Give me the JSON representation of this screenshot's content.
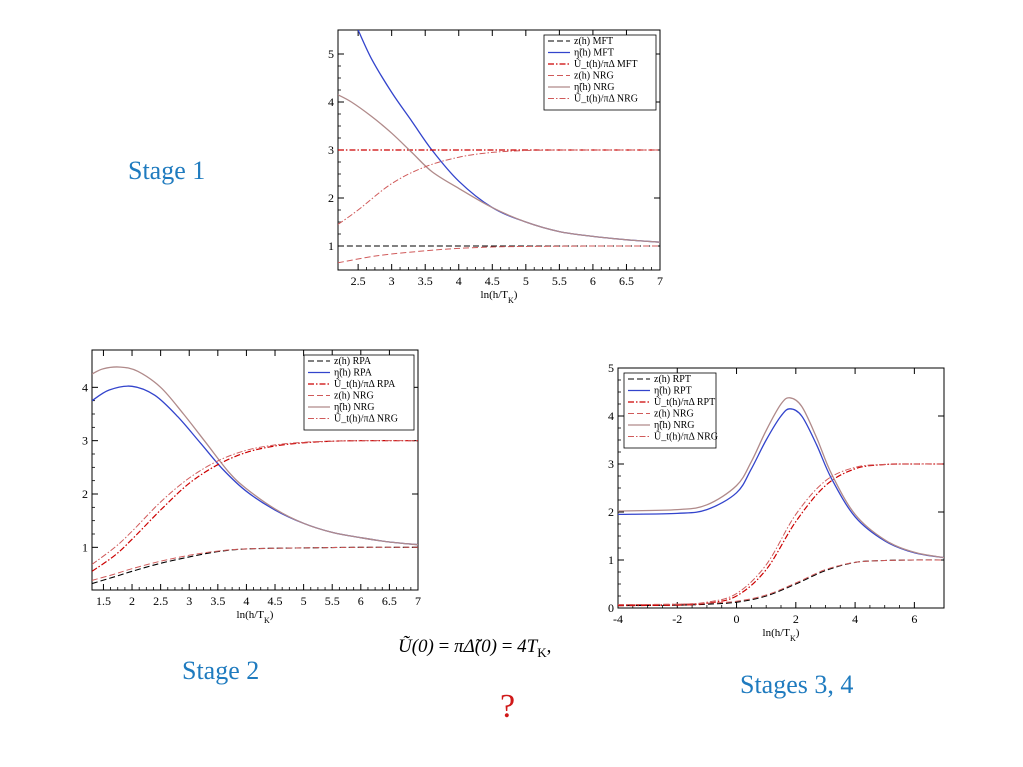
{
  "labels": {
    "stage1": "Stage 1",
    "stage2": "Stage 2",
    "stage34": "Stages 3, 4",
    "question": "?"
  },
  "formula": {
    "lhs": "Ũ(0)",
    "eq1": " = ",
    "mid": "πΔ̃(0)",
    "eq2": " = ",
    "rhs": "4T",
    "rhs_sub": "K",
    "tail": ","
  },
  "styles": {
    "blue": "#3344cc",
    "black": "#000000",
    "red": "#cc0000",
    "pink_red": "#d05a5a",
    "brown": "#b08a8a",
    "label_blue": "#1f7bbf"
  },
  "chart_data": [
    {
      "type": "line",
      "xlabel": "ln(h/T",
      "xlabel_sub": "K",
      "xlim": [
        2.2,
        7
      ],
      "ylim": [
        0.5,
        5.5
      ],
      "xticks": [
        "2.5",
        "3",
        "3.5",
        "4",
        "4.5",
        "5",
        "5.5",
        "6",
        "6.5",
        "7"
      ],
      "yticks": [
        "1",
        "2",
        "3",
        "4",
        "5"
      ],
      "legend_position": "top-right",
      "series": [
        {
          "name": "z(h) MFT",
          "x": [
            2.2,
            7
          ],
          "y": [
            1.0,
            1.0
          ],
          "style": "black-dashed"
        },
        {
          "name": "η̃(h) MFT",
          "x": [
            2.5,
            2.7,
            3.0,
            3.3,
            3.6,
            4.0,
            4.5,
            5.0,
            5.5,
            6.0,
            6.5,
            7.0
          ],
          "y": [
            5.5,
            4.9,
            4.2,
            3.6,
            3.0,
            2.35,
            1.8,
            1.5,
            1.3,
            1.2,
            1.13,
            1.08
          ],
          "style": "blue-solid"
        },
        {
          "name": "Ũ_t(h)/πΔ MFT",
          "x": [
            2.2,
            7
          ],
          "y": [
            3.0,
            3.0
          ],
          "style": "red-dashdot"
        },
        {
          "name": "z(h) NRG",
          "x": [
            2.2,
            2.8,
            3.5,
            4.0,
            4.5,
            5.0,
            6.0,
            7.0
          ],
          "y": [
            0.65,
            0.8,
            0.9,
            0.95,
            0.98,
            0.99,
            1.0,
            1.0
          ],
          "style": "pink-dashed"
        },
        {
          "name": "η̃(h) NRG",
          "x": [
            2.2,
            2.4,
            2.7,
            3.0,
            3.3,
            3.6,
            4.0,
            4.5,
            5.0,
            5.5,
            6.0,
            6.5,
            7.0
          ],
          "y": [
            4.15,
            4.0,
            3.7,
            3.35,
            2.95,
            2.55,
            2.2,
            1.8,
            1.5,
            1.3,
            1.2,
            1.13,
            1.08
          ],
          "style": "brown-solid"
        },
        {
          "name": "Ũ_t(h)/πΔ NRG",
          "x": [
            2.2,
            2.5,
            3.0,
            3.5,
            4.0,
            4.5,
            5.0,
            5.5,
            6.0,
            7.0
          ],
          "y": [
            1.45,
            1.75,
            2.3,
            2.65,
            2.85,
            2.95,
            2.99,
            3.0,
            3.0,
            3.0
          ],
          "style": "pink-dashdot"
        }
      ]
    },
    {
      "type": "line",
      "xlabel": "ln(h/T",
      "xlabel_sub": "K",
      "xlim": [
        1.3,
        7
      ],
      "ylim": [
        0.2,
        4.7
      ],
      "xticks": [
        "1.5",
        "2",
        "2.5",
        "3",
        "3.5",
        "4",
        "4.5",
        "5",
        "5.5",
        "6",
        "6.5",
        "7"
      ],
      "yticks": [
        "1",
        "2",
        "3",
        "4"
      ],
      "legend_position": "top-right",
      "series": [
        {
          "name": "z(h) RPA",
          "x": [
            1.3,
            1.7,
            2.0,
            2.5,
            3.0,
            3.5,
            4.0,
            5.0,
            6.0,
            7.0
          ],
          "y": [
            0.32,
            0.45,
            0.55,
            0.7,
            0.82,
            0.92,
            0.97,
            0.99,
            1.0,
            1.0
          ],
          "style": "black-dashed"
        },
        {
          "name": "η̃(h) RPA",
          "x": [
            1.3,
            1.6,
            2.0,
            2.4,
            2.8,
            3.2,
            3.6,
            4.0,
            4.5,
            5.0,
            5.5,
            6.0,
            6.5,
            7.0
          ],
          "y": [
            3.75,
            3.95,
            4.02,
            3.85,
            3.45,
            2.95,
            2.45,
            2.05,
            1.7,
            1.45,
            1.28,
            1.18,
            1.1,
            1.05
          ],
          "style": "blue-solid"
        },
        {
          "name": "Ũ_t(h)/πΔ RPA",
          "x": [
            1.3,
            1.7,
            2.0,
            2.5,
            3.0,
            3.5,
            4.0,
            4.5,
            5.0,
            5.5,
            6.0,
            7.0
          ],
          "y": [
            0.55,
            0.85,
            1.15,
            1.7,
            2.2,
            2.55,
            2.78,
            2.9,
            2.96,
            2.99,
            3.0,
            3.0
          ],
          "style": "red-dashdot"
        },
        {
          "name": "z(h) NRG",
          "x": [
            1.3,
            1.7,
            2.0,
            2.5,
            3.0,
            3.5,
            4.0,
            5.0,
            6.0,
            7.0
          ],
          "y": [
            0.38,
            0.5,
            0.6,
            0.74,
            0.85,
            0.93,
            0.97,
            0.99,
            1.0,
            1.0
          ],
          "style": "pink-dashed"
        },
        {
          "name": "η̃(h) NRG",
          "x": [
            1.3,
            1.5,
            1.8,
            2.1,
            2.5,
            2.9,
            3.3,
            3.7,
            4.0,
            4.5,
            5.0,
            5.5,
            6.0,
            6.5,
            7.0
          ],
          "y": [
            4.25,
            4.35,
            4.38,
            4.3,
            4.0,
            3.5,
            2.95,
            2.4,
            2.1,
            1.72,
            1.45,
            1.28,
            1.18,
            1.1,
            1.05
          ],
          "style": "brown-solid"
        },
        {
          "name": "Ũ_t(h)/πΔ NRG",
          "x": [
            1.3,
            1.7,
            2.0,
            2.5,
            3.0,
            3.5,
            4.0,
            4.5,
            5.0,
            5.5,
            6.0,
            7.0
          ],
          "y": [
            0.68,
            1.0,
            1.3,
            1.85,
            2.3,
            2.62,
            2.82,
            2.92,
            2.97,
            2.99,
            3.0,
            3.0
          ],
          "style": "pink-dashdot"
        }
      ]
    },
    {
      "type": "line",
      "xlabel": "ln(h/T",
      "xlabel_sub": "K",
      "xlim": [
        -4,
        7
      ],
      "ylim": [
        0,
        5
      ],
      "xticks": [
        "-4",
        "-2",
        "0",
        "2",
        "4",
        "6"
      ],
      "yticks": [
        "0",
        "1",
        "2",
        "3",
        "4",
        "5"
      ],
      "legend_position": "top-left",
      "series": [
        {
          "name": "z(h) RPT",
          "x": [
            -4,
            -2,
            -1,
            0,
            1,
            2,
            3,
            4,
            5,
            6,
            7
          ],
          "y": [
            0.05,
            0.06,
            0.08,
            0.12,
            0.25,
            0.5,
            0.78,
            0.95,
            0.99,
            1.0,
            1.0
          ],
          "style": "black-dashed"
        },
        {
          "name": "η̃(h) RPT",
          "x": [
            -4,
            -2,
            -1,
            0,
            0.5,
            1.0,
            1.5,
            1.8,
            2.2,
            2.7,
            3.2,
            4.0,
            5.0,
            6.0,
            7.0
          ],
          "y": [
            1.95,
            1.97,
            2.05,
            2.4,
            2.9,
            3.5,
            4.0,
            4.15,
            4.0,
            3.4,
            2.7,
            1.9,
            1.4,
            1.15,
            1.05
          ],
          "style": "blue-solid"
        },
        {
          "name": "Ũ_t(h)/πΔ RPT",
          "x": [
            -4,
            -2,
            -1,
            0,
            1,
            2,
            3,
            4,
            5,
            6,
            7
          ],
          "y": [
            0.05,
            0.06,
            0.1,
            0.25,
            0.8,
            1.8,
            2.55,
            2.9,
            2.99,
            3.0,
            3.0
          ],
          "style": "red-dashdot"
        },
        {
          "name": "z(h) NRG",
          "x": [
            -4,
            -2,
            -1,
            0,
            1,
            2,
            3,
            4,
            5,
            6,
            7
          ],
          "y": [
            0.07,
            0.08,
            0.1,
            0.14,
            0.27,
            0.52,
            0.8,
            0.95,
            0.99,
            1.0,
            1.0
          ],
          "style": "pink-dashed"
        },
        {
          "name": "η̃(h) NRG",
          "x": [
            -4,
            -2,
            -1,
            0,
            0.5,
            1.0,
            1.5,
            1.8,
            2.2,
            2.7,
            3.2,
            4.0,
            5.0,
            6.0,
            7.0
          ],
          "y": [
            2.02,
            2.05,
            2.15,
            2.55,
            3.05,
            3.7,
            4.25,
            4.38,
            4.2,
            3.55,
            2.8,
            1.95,
            1.42,
            1.16,
            1.05
          ],
          "style": "brown-solid"
        },
        {
          "name": "Ũ_t(h)/πΔ NRG",
          "x": [
            -4,
            -2,
            -1,
            0,
            1,
            2,
            3,
            4,
            5,
            6,
            7
          ],
          "y": [
            0.07,
            0.08,
            0.12,
            0.3,
            0.9,
            1.95,
            2.65,
            2.93,
            2.99,
            3.0,
            3.0
          ],
          "style": "pink-dashdot"
        }
      ]
    }
  ]
}
